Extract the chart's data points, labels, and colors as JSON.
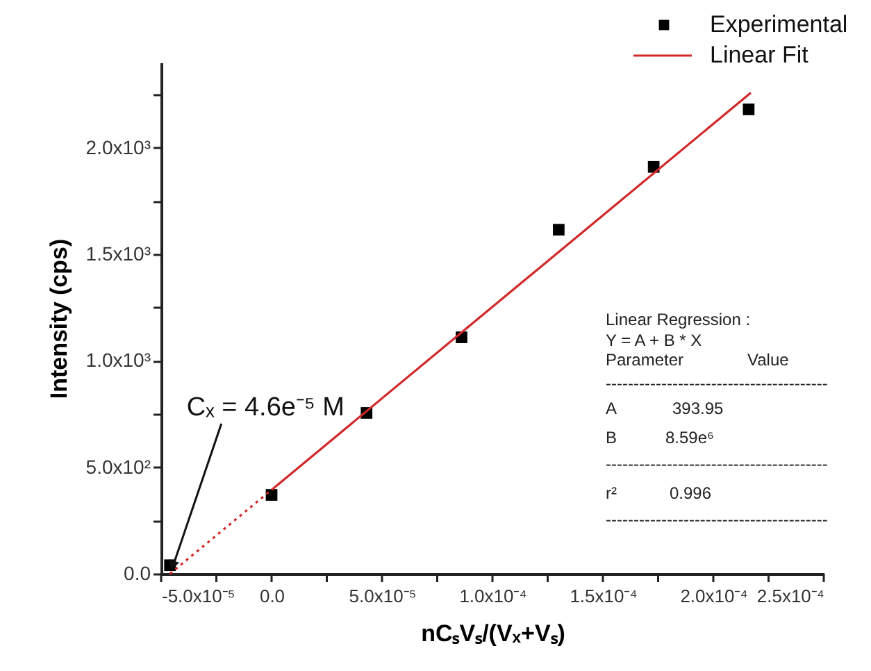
{
  "chart_data": {
    "type": "scatter",
    "xlabel": "nCₛVₛ/(Vₓ+Vₛ)",
    "ylabel": "Intensity (cps)",
    "xlim": [
      -5e-05,
      0.00025
    ],
    "xticks": [
      {
        "value": -5e-05,
        "label": "-5.0x10⁻⁵"
      },
      {
        "value": -2.5e-05,
        "label": null
      },
      {
        "value": 0,
        "label": "0.0"
      },
      {
        "value": 2.5e-05,
        "label": null
      },
      {
        "value": 5e-05,
        "label": "5.0x10⁻⁵"
      },
      {
        "value": 7.5e-05,
        "label": null
      },
      {
        "value": 0.0001,
        "label": "1.0x10⁻⁴"
      },
      {
        "value": 0.000125,
        "label": null
      },
      {
        "value": 0.00015,
        "label": "1.5x10⁻⁴"
      },
      {
        "value": 0.000175,
        "label": null
      },
      {
        "value": 0.0002,
        "label": "2.0x10⁻⁴"
      },
      {
        "value": 0.000225,
        "label": null
      },
      {
        "value": 0.00025,
        "label": "2.5x10⁻⁴"
      }
    ],
    "ylim": [
      0,
      2400
    ],
    "yticks": [
      {
        "value": 0,
        "label": "0.0"
      },
      {
        "value": 250,
        "label": null
      },
      {
        "value": 500,
        "label": "5.0x10²"
      },
      {
        "value": 750,
        "label": null
      },
      {
        "value": 1000,
        "label": "1.0x10³"
      },
      {
        "value": 1250,
        "label": null
      },
      {
        "value": 1500,
        "label": "1.5x10³"
      },
      {
        "value": 1750,
        "label": null
      },
      {
        "value": 2000,
        "label": "2.0x10³"
      },
      {
        "value": 2250,
        "label": null
      }
    ],
    "grid": false,
    "legend": "top right",
    "series": [
      {
        "name": "Experimental",
        "marker": "square",
        "color": "#000000",
        "x": [
          -4.6e-05,
          0,
          4.3e-05,
          8.6e-05,
          0.00013,
          0.000173,
          0.000216
        ],
        "values": [
          40,
          370,
          755,
          1110,
          1615,
          1910,
          2180
        ]
      },
      {
        "name": "Linear Fit",
        "type": "line",
        "line_style": "solid",
        "color": "#d02a2a",
        "x": [
          0,
          0.000217
        ],
        "values": [
          394,
          2258
        ]
      },
      {
        "type": "line",
        "line_style": "dotted",
        "color": "#d02a2a",
        "x": [
          -4.6e-05,
          0
        ],
        "values": [
          0,
          394
        ]
      }
    ],
    "annotations": [
      {
        "text": "Cₓ = 4.6e⁻⁵ M",
        "x": -4.6e-05,
        "y": 0
      },
      "Linear Regression :",
      "Y = A + B * X",
      "Parameter",
      "Value",
      "----------------------------------------",
      "A",
      "393.95",
      "B",
      "8.59e⁶",
      "----------------------------------------",
      "r²",
      "0.996",
      "----------------------------------------"
    ]
  }
}
